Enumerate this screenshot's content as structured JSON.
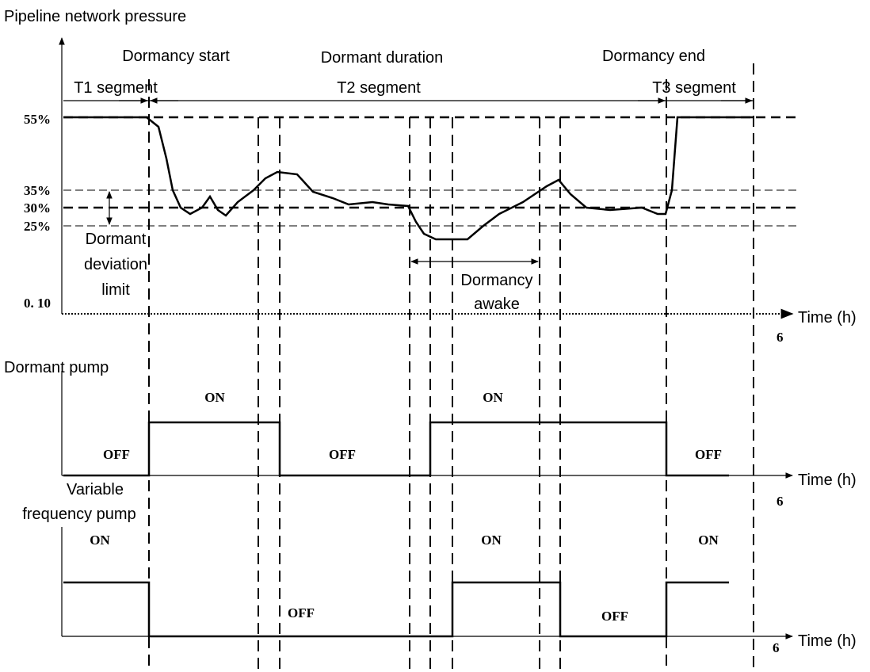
{
  "pressure": {
    "label": "Pipeline network pressure",
    "levels": [
      "55%",
      "35%",
      "30%",
      "25%",
      "0. 10"
    ],
    "phases": [
      "Dormancy start",
      "Dormant duration",
      "Dormancy end"
    ],
    "segments": [
      "T1 segment",
      "T2 segment",
      "T3 segment"
    ],
    "deviation_note": [
      "Dormant",
      "deviation",
      "limit"
    ],
    "awake_note": [
      "Dormancy",
      "awake"
    ],
    "axis_label": "Time (h)",
    "axis_end": "6"
  },
  "dormant_pump": {
    "label": "Dormant pump",
    "states": [
      "ON",
      "ON",
      "OFF",
      "OFF",
      "OFF"
    ],
    "axis_label": "Time (h)",
    "axis_end": "6"
  },
  "vf_pump": {
    "label": [
      "Variable",
      "frequency pump"
    ],
    "states": [
      "ON",
      "ON",
      "ON",
      "OFF",
      "OFF"
    ],
    "axis_label": "Time (h)",
    "axis_end": "6"
  }
}
